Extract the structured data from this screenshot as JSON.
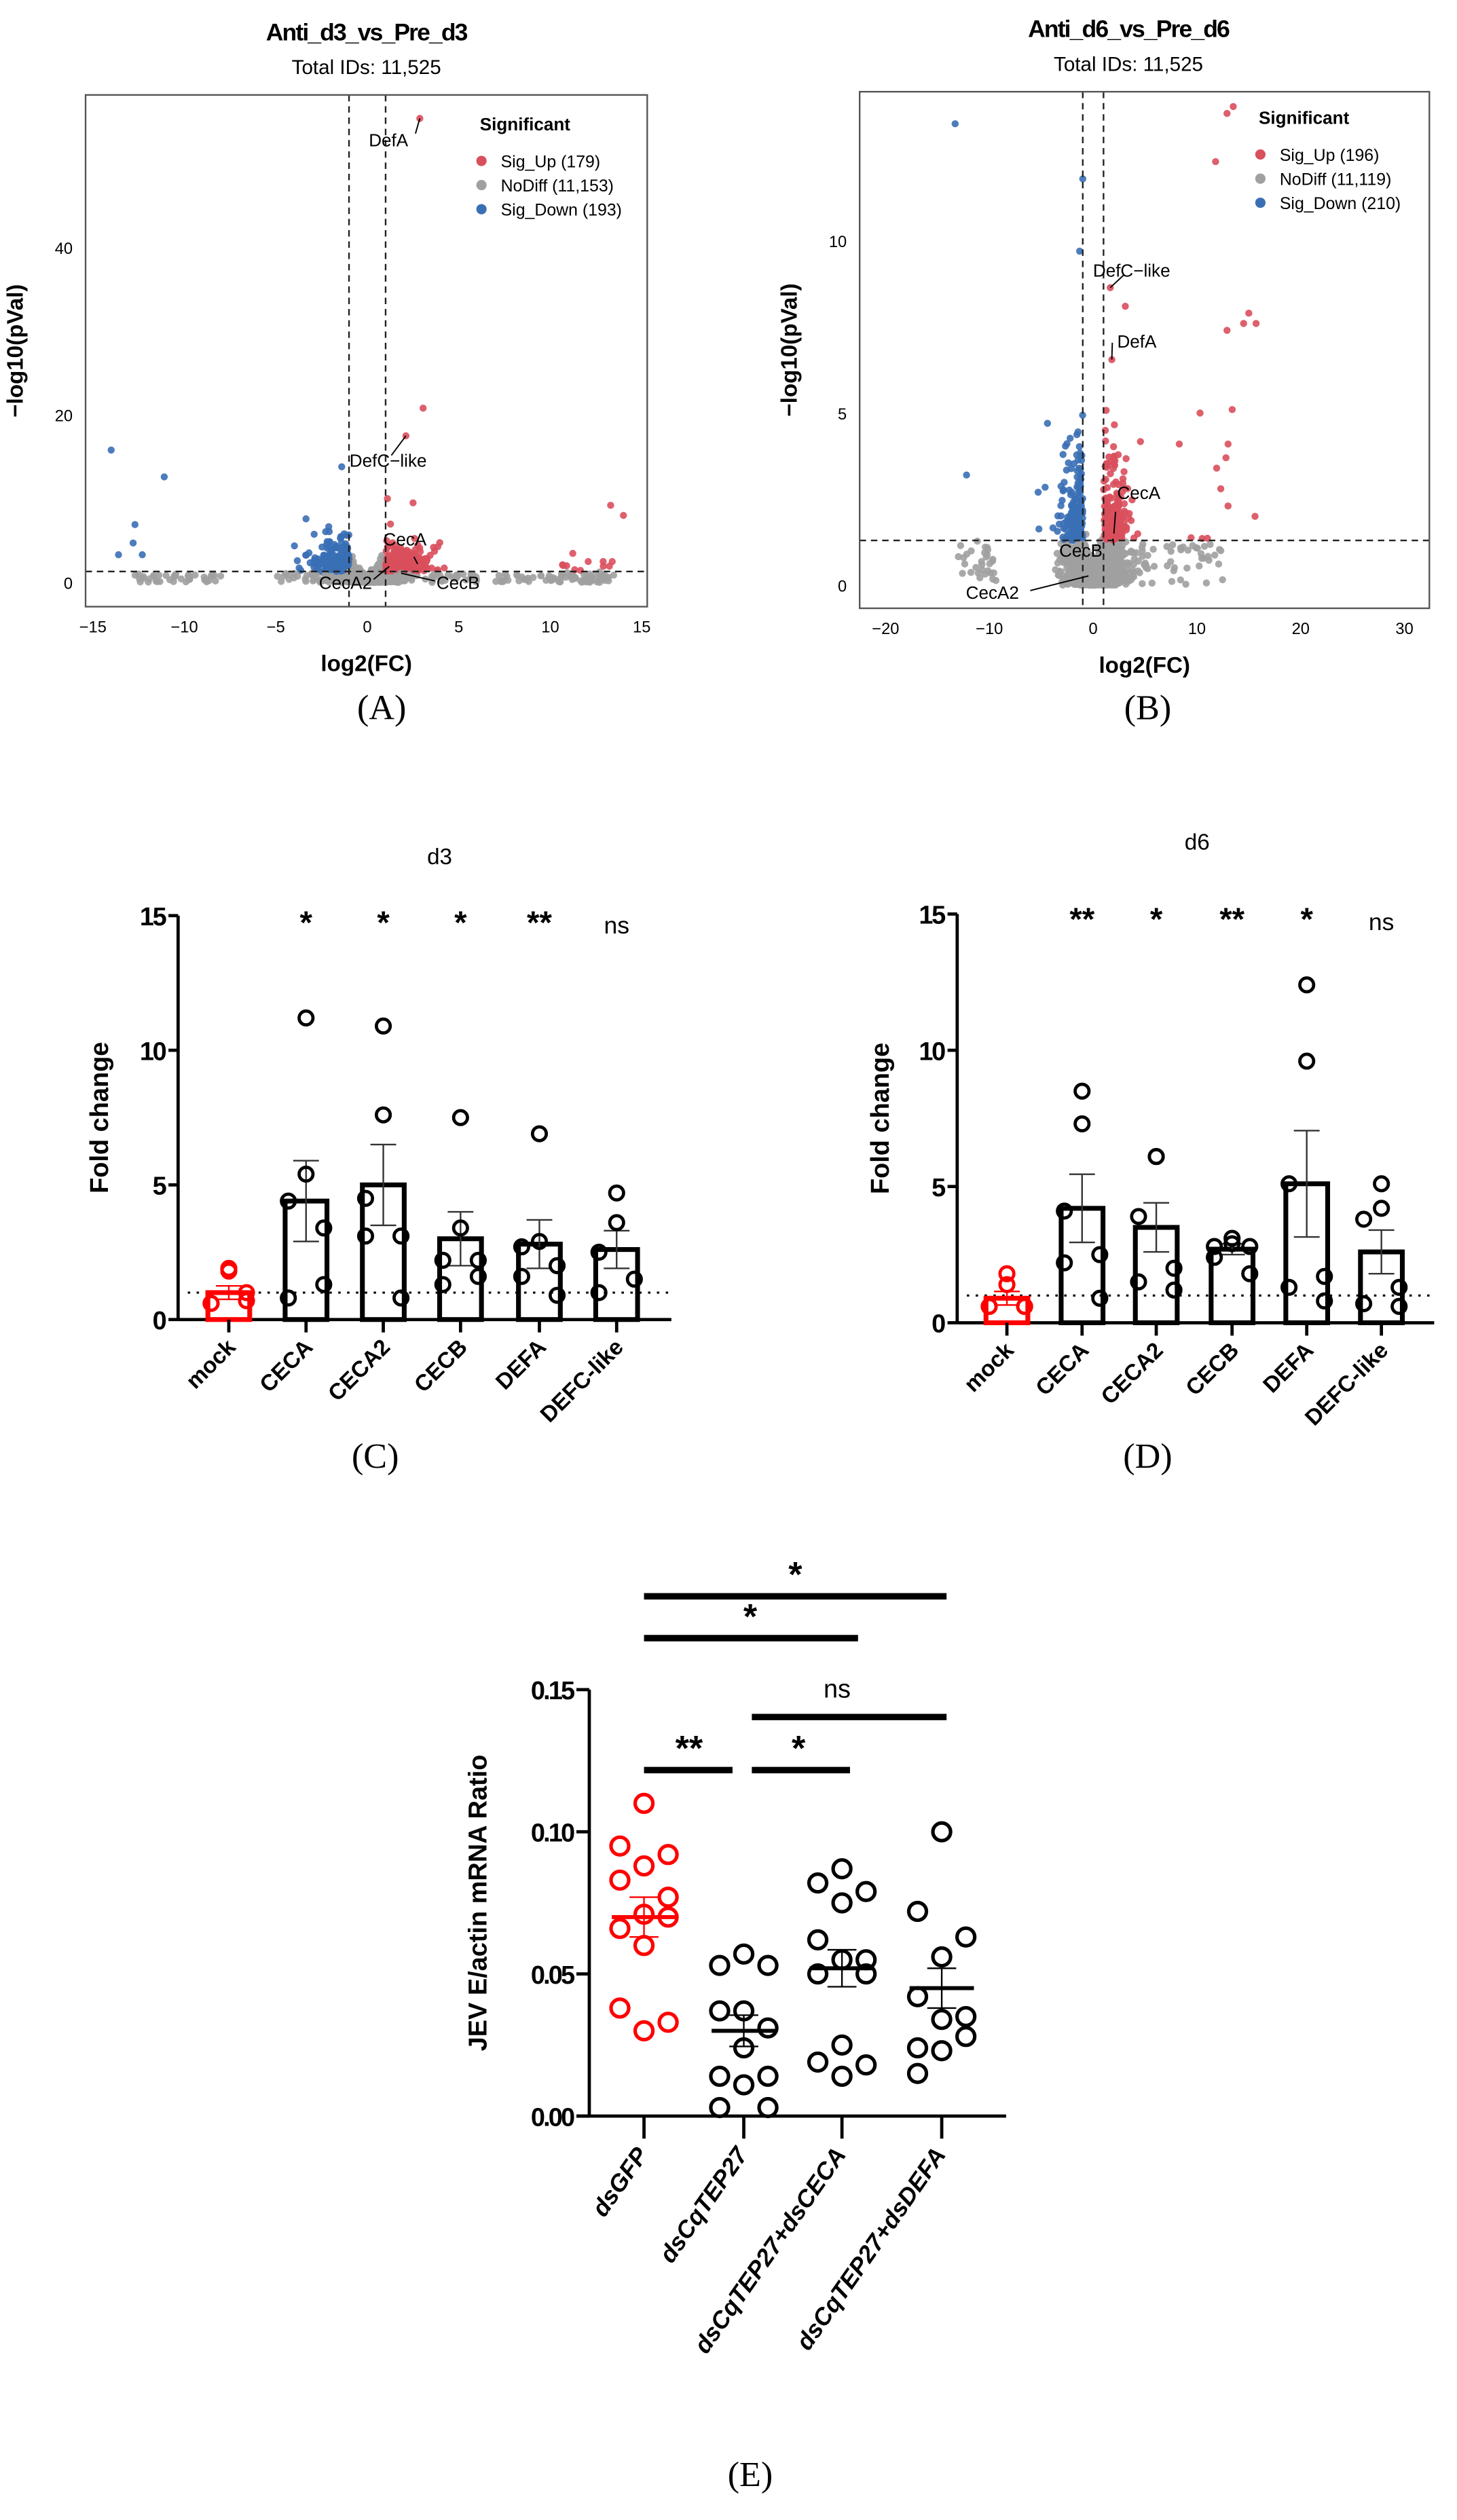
{
  "panel_labels": {
    "A": "(A)",
    "B": "(B)",
    "C": "(C)",
    "D": "(D)",
    "E": "(E)"
  },
  "chart_data": [
    {
      "id": "A",
      "type": "scatter",
      "title": "Anti_d3_vs_Pre_d3",
      "subtitle": "Total IDs: 11,525",
      "xlabel": "log2(FC)",
      "ylabel": "−log10(pVal)",
      "xlim": [
        -15.4,
        15.3
      ],
      "ylim": [
        -2.9,
        58.2
      ],
      "xticks": [
        -15,
        -10,
        -5,
        0,
        5,
        10,
        15
      ],
      "xtick_labels": [
        "−15",
        "−10",
        "−5",
        "0",
        "5",
        "10",
        "15"
      ],
      "yticks": [
        0,
        20,
        40
      ],
      "ytick_labels": [
        "0",
        "20",
        "40"
      ],
      "thresholds": {
        "log2fc": [
          -1,
          1
        ],
        "neg_log10_p": 1.3
      },
      "legend": {
        "title": "Significant",
        "placement": "top-right",
        "items": [
          {
            "label": "Sig_Up (179)",
            "color": "#d94f5c",
            "count": 179
          },
          {
            "label": "NoDiff (11,153)",
            "color": "#a0a0a0",
            "count": 11153
          },
          {
            "label": "Sig_Down (193)",
            "color": "#3a6fb5",
            "count": 193
          }
        ]
      },
      "highlighted": [
        {
          "label": "DefA",
          "x": 2.87,
          "y": 55.4,
          "group": "up"
        },
        {
          "label": "DefC−like",
          "x": 2.11,
          "y": 17.5,
          "group": "up"
        },
        {
          "label": "CecA",
          "x": 2.75,
          "y": 2.2,
          "group": "up"
        },
        {
          "label": "CecA2",
          "x": 1.2,
          "y": 1.9,
          "group": "up"
        },
        {
          "label": "CecB",
          "x": 1.85,
          "y": 1.1,
          "group": "nodiff"
        }
      ],
      "outliers": [
        {
          "x": -14.0,
          "y": 15.8,
          "group": "down"
        },
        {
          "x": -11.1,
          "y": 12.6,
          "group": "down"
        },
        {
          "x": -12.7,
          "y": 6.9,
          "group": "down"
        },
        {
          "x": -12.8,
          "y": 4.7,
          "group": "down"
        },
        {
          "x": -13.6,
          "y": 3.3,
          "group": "down"
        },
        {
          "x": -12.3,
          "y": 3.3,
          "group": "down"
        },
        {
          "x": -1.4,
          "y": 13.8,
          "group": "down"
        },
        {
          "x": 3.05,
          "y": 20.8,
          "group": "up"
        },
        {
          "x": 13.3,
          "y": 9.2,
          "group": "up"
        },
        {
          "x": 14.0,
          "y": 8.0,
          "group": "up"
        },
        {
          "x": 2.5,
          "y": 9.5,
          "group": "up"
        },
        {
          "x": 1.1,
          "y": 10.0,
          "group": "up"
        }
      ]
    },
    {
      "id": "B",
      "type": "scatter",
      "title": "Anti_d6_vs_Pre_d6",
      "subtitle": "Total IDs: 11,525",
      "xlabel": "log2(FC)",
      "ylabel": "−log10(pVal)",
      "xlim": [
        -22.5,
        32.4
      ],
      "ylim": [
        -0.67,
        14.33
      ],
      "xticks": [
        -20,
        -10,
        0,
        10,
        20,
        30
      ],
      "xtick_labels": [
        "−20",
        "−10",
        "0",
        "10",
        "20",
        "30"
      ],
      "yticks": [
        0,
        5,
        10
      ],
      "ytick_labels": [
        "0",
        "5",
        "10"
      ],
      "thresholds": {
        "log2fc": [
          -1,
          1
        ],
        "neg_log10_p": 1.3
      },
      "legend": {
        "title": "Significant",
        "placement": "top-right",
        "items": [
          {
            "label": "Sig_Up (196)",
            "color": "#d94f5c",
            "count": 196
          },
          {
            "label": "NoDiff (11,119)",
            "color": "#a0a0a0",
            "count": 11119
          },
          {
            "label": "Sig_Down (210)",
            "color": "#3a6fb5",
            "count": 210
          }
        ]
      },
      "highlighted": [
        {
          "label": "DefC−like",
          "x": 1.65,
          "y": 8.64,
          "group": "up"
        },
        {
          "label": "DefA",
          "x": 1.8,
          "y": 6.55,
          "group": "up"
        },
        {
          "label": "CecA",
          "x": 2.0,
          "y": 1.5,
          "group": "up"
        },
        {
          "label": "CecB",
          "x": 1.9,
          "y": 1.35,
          "group": "up"
        },
        {
          "label": "CecA2",
          "x": -0.45,
          "y": 0.27,
          "group": "nodiff"
        }
      ],
      "outliers": [
        {
          "x": -13.3,
          "y": 13.4,
          "group": "down"
        },
        {
          "x": -1.0,
          "y": 11.8,
          "group": "down"
        },
        {
          "x": -1.3,
          "y": 9.7,
          "group": "down"
        },
        {
          "x": -12.2,
          "y": 3.2,
          "group": "down"
        },
        {
          "x": -5.3,
          "y": 2.7,
          "group": "down"
        },
        {
          "x": -4.4,
          "y": 4.7,
          "group": "down"
        },
        {
          "x": 13.5,
          "y": 13.9,
          "group": "up"
        },
        {
          "x": 12.9,
          "y": 13.7,
          "group": "up"
        },
        {
          "x": 11.8,
          "y": 12.3,
          "group": "up"
        },
        {
          "x": 15.0,
          "y": 7.9,
          "group": "up"
        },
        {
          "x": 14.5,
          "y": 7.6,
          "group": "up"
        },
        {
          "x": 15.7,
          "y": 7.6,
          "group": "up"
        },
        {
          "x": 12.9,
          "y": 7.4,
          "group": "up"
        },
        {
          "x": 3.1,
          "y": 8.1,
          "group": "up"
        },
        {
          "x": 10.3,
          "y": 5.0,
          "group": "up"
        },
        {
          "x": 13.4,
          "y": 5.1,
          "group": "up"
        },
        {
          "x": 8.3,
          "y": 4.1,
          "group": "up"
        },
        {
          "x": 13.0,
          "y": 4.1,
          "group": "up"
        },
        {
          "x": 11.9,
          "y": 3.4,
          "group": "up"
        },
        {
          "x": 12.8,
          "y": 3.7,
          "group": "up"
        },
        {
          "x": 12.3,
          "y": 2.8,
          "group": "up"
        },
        {
          "x": 15.6,
          "y": 2.0,
          "group": "up"
        },
        {
          "x": 13.0,
          "y": 2.3,
          "group": "up"
        }
      ]
    },
    {
      "id": "C",
      "type": "bar",
      "title": "d3",
      "ylabel": "Fold change",
      "ylim": [
        0,
        15
      ],
      "yticks": [
        0,
        5,
        10,
        15
      ],
      "reference_line": 1,
      "categories": [
        "mock",
        "CECA",
        "CECA2",
        "CECB",
        "DEFA",
        "DEFC-like"
      ],
      "colors": [
        "#ff0000",
        "#000000",
        "#000000",
        "#000000",
        "#000000",
        "#000000"
      ],
      "means": [
        1.0,
        4.4,
        5.0,
        3.0,
        2.8,
        2.6
      ],
      "sem": [
        0.25,
        1.5,
        1.5,
        1.0,
        0.9,
        0.7
      ],
      "significance": [
        "",
        "*",
        "*",
        "*",
        "**",
        "ns"
      ],
      "points": [
        [
          1.9,
          1.8,
          0.6,
          0.7,
          0.6,
          1.0
        ],
        [
          11.2,
          5.4,
          4.4,
          3.4,
          0.8,
          1.3
        ],
        [
          10.9,
          7.6,
          4.5,
          3.1,
          3.1,
          0.8
        ],
        [
          7.5,
          3.4,
          2.2,
          2.2,
          1.3,
          1.6
        ],
        [
          6.9,
          2.9,
          2.7,
          2.0,
          1.6,
          0.9
        ],
        [
          4.7,
          3.6,
          2.5,
          1.5,
          1.0
        ]
      ]
    },
    {
      "id": "D",
      "type": "bar",
      "title": "d6",
      "ylabel": "Fold change",
      "ylim": [
        0,
        15
      ],
      "yticks": [
        0,
        5,
        10,
        15
      ],
      "reference_line": 1,
      "categories": [
        "mock",
        "CECA",
        "CECA2",
        "CECB",
        "DEFA",
        "DEFC-like"
      ],
      "colors": [
        "#ff0000",
        "#000000",
        "#000000",
        "#000000",
        "#000000",
        "#000000"
      ],
      "means": [
        0.9,
        4.2,
        3.5,
        2.7,
        5.1,
        2.6
      ],
      "sem": [
        0.25,
        1.25,
        0.9,
        0.2,
        1.95,
        0.8
      ],
      "significance": [
        "",
        "**",
        "*",
        "**",
        "*",
        "ns"
      ],
      "points": [
        [
          1.8,
          1.4,
          0.6,
          0.6,
          0.6,
          0.6
        ],
        [
          8.5,
          7.3,
          4.1,
          2.5,
          2.2,
          0.9
        ],
        [
          6.1,
          6.1,
          3.9,
          2.0,
          1.5,
          1.2
        ],
        [
          3.1,
          2.9,
          2.8,
          2.8,
          2.4,
          1.8
        ],
        [
          12.4,
          9.6,
          5.1,
          1.7,
          1.3,
          0.8
        ],
        [
          5.1,
          4.2,
          3.8,
          1.3,
          0.7,
          0.6
        ]
      ]
    },
    {
      "id": "E",
      "type": "scatter",
      "ylabel": "JEV E/actin mRNA Ratio",
      "ylim": [
        0,
        0.15
      ],
      "yticks": [
        0.0,
        0.05,
        0.1,
        0.15
      ],
      "ytick_labels": [
        "0.00",
        "0.05",
        "0.10",
        "0.15"
      ],
      "categories": [
        "dsGFP",
        "dsCqTEP27",
        "dsCqTEP27+dsCECA",
        "dsCqTEP27+dsDEFA"
      ],
      "colors": [
        "#ff0000",
        "#000000",
        "#000000",
        "#000000"
      ],
      "means": [
        0.07,
        0.03,
        0.052,
        0.045
      ],
      "sem": [
        0.007,
        0.0055,
        0.0065,
        0.007
      ],
      "points": [
        [
          0.11,
          0.095,
          0.092,
          0.088,
          0.083,
          0.077,
          0.071,
          0.07,
          0.066,
          0.06,
          0.038,
          0.033,
          0.03
        ],
        [
          0.057,
          0.053,
          0.053,
          0.037,
          0.037,
          0.031,
          0.024,
          0.014,
          0.014,
          0.011,
          0.003,
          0.003
        ],
        [
          0.087,
          0.082,
          0.079,
          0.075,
          0.062,
          0.055,
          0.055,
          0.05,
          0.05,
          0.025,
          0.019,
          0.018,
          0.014
        ],
        [
          0.1,
          0.072,
          0.063,
          0.056,
          0.042,
          0.035,
          0.034,
          0.028,
          0.024,
          0.023,
          0.015
        ]
      ],
      "comparisons": [
        {
          "from": 0,
          "to": 3,
          "label": "*"
        },
        {
          "from": 0,
          "to": 2,
          "label": "*"
        },
        {
          "from": 1,
          "to": 3,
          "label": "ns"
        },
        {
          "from": 0,
          "to": 1,
          "label": "**"
        },
        {
          "from": 1,
          "to": 2,
          "label": "*"
        }
      ]
    }
  ]
}
